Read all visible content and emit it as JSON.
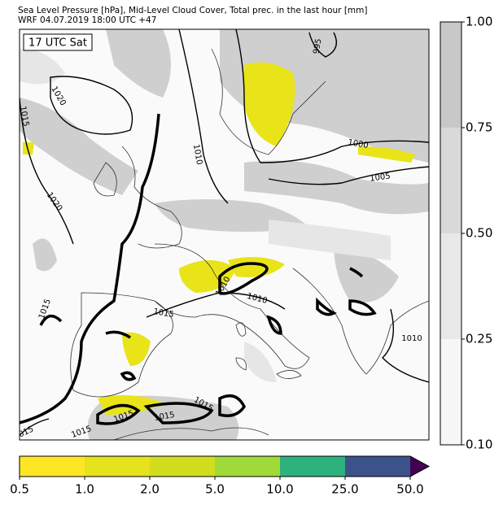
{
  "header": {
    "line1": "Sea Level Pressure [hPa], Mid-Level Cloud Cover, Total prec. in the last hour [mm]",
    "line2": "WRF 04.07.2019 18:00 UTC +47"
  },
  "map_label": "17 UTC Sat",
  "isobar_labels": [
    "1020",
    "1015",
    "1020",
    "1015",
    "1015",
    "1010",
    "995",
    "1000",
    "1005",
    "1010",
    "1010",
    "015",
    "1015",
    "1015",
    "1015",
    "1015",
    "1010"
  ],
  "cloud_colorbar_labels": [
    "0.10",
    "0.25",
    "0.50",
    "0.75",
    "1.00"
  ],
  "precip_colorbar_labels": [
    "0.5",
    "1.0",
    "2.0",
    "5.0",
    "10.0",
    "25.0",
    "50.0"
  ]
}
